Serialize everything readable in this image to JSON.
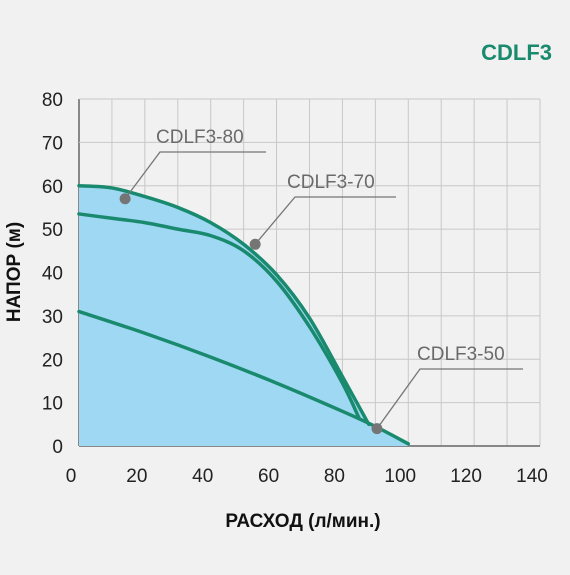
{
  "brand_title": "CDLF3",
  "colors": {
    "background": "#f1f1f1",
    "fill": "#9fd8f3",
    "curve": "#1a8a6e",
    "brand": "#1a8a6e",
    "grid": "#c8c8c8",
    "axis": "#666666",
    "callout_text": "#6a6a6a",
    "marker": "#757575"
  },
  "chart_data": {
    "type": "line",
    "title": "",
    "xlabel": "РАСХОД (л/мин.)",
    "ylabel": "НАПОР (м)",
    "xlim": [
      0,
      140
    ],
    "ylim": [
      0,
      80
    ],
    "x_ticks": [
      0,
      20,
      40,
      60,
      80,
      100,
      120,
      140
    ],
    "y_ticks": [
      0,
      10,
      20,
      30,
      40,
      50,
      60,
      70,
      80
    ],
    "grid": true,
    "legend": "callout labels on curves",
    "shaded_area": "under CDLF3-80 curve",
    "series": [
      {
        "name": "CDLF3-80",
        "x": [
          0,
          10,
          20,
          30,
          40,
          50,
          60,
          70,
          80,
          88
        ],
        "y": [
          60,
          59.5,
          57.5,
          55,
          51.5,
          46.5,
          39.5,
          29.5,
          16,
          5
        ],
        "callout_point": [
          14,
          57
        ]
      },
      {
        "name": "CDLF3-70",
        "x": [
          0,
          10,
          20,
          30,
          40,
          50,
          60,
          70,
          80,
          85
        ],
        "y": [
          53.5,
          52.5,
          51.5,
          50,
          48.5,
          45,
          38,
          27.5,
          14.5,
          6.5
        ],
        "callout_point": [
          53.5,
          46.5
        ]
      },
      {
        "name": "CDLF3-50",
        "x": [
          0,
          20,
          40,
          60,
          80,
          90,
          100
        ],
        "y": [
          31,
          26,
          20.5,
          14.5,
          8,
          4.5,
          0.5
        ],
        "callout_point": [
          90.5,
          4
        ]
      }
    ]
  }
}
